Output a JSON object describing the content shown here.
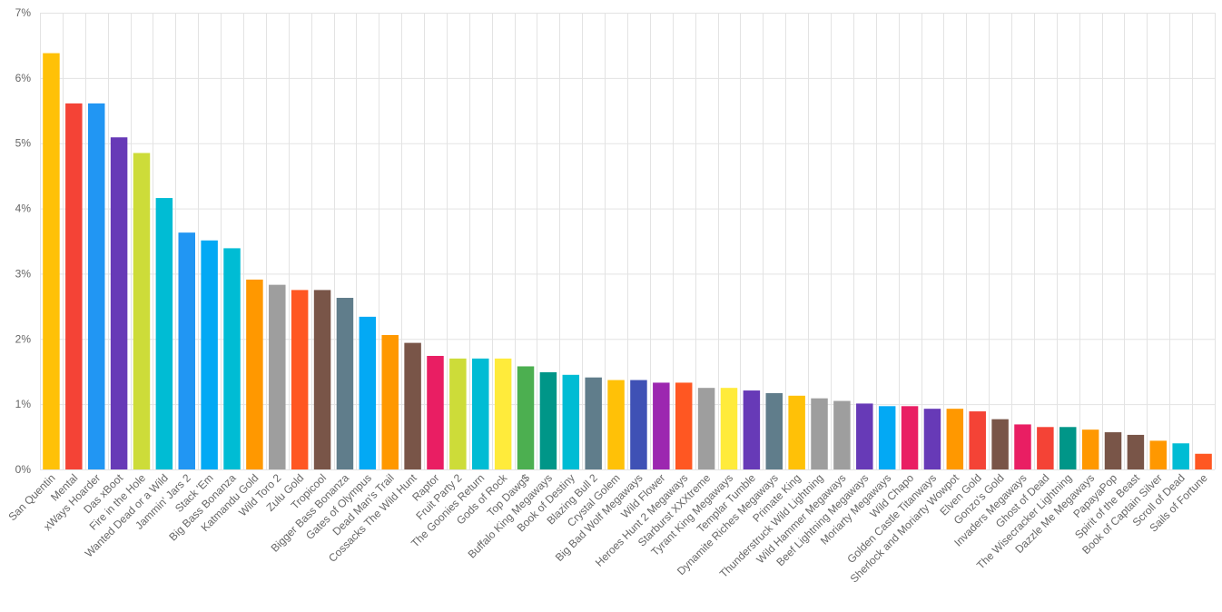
{
  "chart_data": {
    "type": "bar",
    "title": "",
    "xlabel": "",
    "ylabel": "",
    "ylim": [
      0,
      7
    ],
    "y_ticks": [
      "0%",
      "1%",
      "2%",
      "3%",
      "4%",
      "5%",
      "6%",
      "7%"
    ],
    "grid": true,
    "legend": "none",
    "categories": [
      "San Quentin",
      "Mental",
      "xWays Hoarder",
      "Das xBoot",
      "Fire in the Hole",
      "Wanted Dead or a Wild",
      "Jammin' Jars 2",
      "Stack 'Em",
      "Big Bass Bonanza",
      "Katmandu Gold",
      "Wild Toro 2",
      "Zulu Gold",
      "Tropicool",
      "Bigger Bass Bonanza",
      "Gates of Olympus",
      "Dead Man's Trail",
      "Cossacks The Wild Hunt",
      "Raptor",
      "Fruit Party 2",
      "The Goonies Return",
      "Gods of Rock",
      "Top Dawg$",
      "Buffalo King Megaways",
      "Book of Destiny",
      "Blazing Bull 2",
      "Crystal Golem",
      "Big Bad Wolf Megaways",
      "Wild Flower",
      "Heroes Hunt 2 Megaways",
      "Starburst XXXtreme",
      "Tyrant King Megaways",
      "Templar Tumble",
      "Dynamite Riches Megaways",
      "Primate King",
      "Thunderstruck Wild Lightning",
      "Wild Hammer Megaways",
      "Beef Lightning Megaways",
      "Moriarty Megaways",
      "Wild Chapo",
      "Golden Castle Titanways",
      "Sherlock and Moriarty Wowpot",
      "Elven Gold",
      "Gonzo's Gold",
      "Invaders Megaways",
      "Ghost of Dead",
      "The Wisecracker Lightning",
      "Dazzle Me Megaways",
      "PapayaPop",
      "Spirit of the Beast",
      "Book of Captain Silver",
      "Scroll of Dead",
      "Sails of Fortune"
    ],
    "values": [
      6.38,
      5.61,
      5.61,
      5.09,
      4.85,
      4.16,
      3.63,
      3.51,
      3.39,
      2.91,
      2.83,
      2.75,
      2.75,
      2.63,
      2.34,
      2.06,
      1.94,
      1.74,
      1.7,
      1.7,
      1.7,
      1.58,
      1.49,
      1.45,
      1.41,
      1.37,
      1.37,
      1.33,
      1.33,
      1.25,
      1.25,
      1.21,
      1.17,
      1.13,
      1.09,
      1.05,
      1.01,
      0.97,
      0.97,
      0.93,
      0.93,
      0.89,
      0.77,
      0.69,
      0.65,
      0.65,
      0.61,
      0.57,
      0.53,
      0.44,
      0.4,
      0.24
    ],
    "colors": [
      "#FFC107",
      "#F44336",
      "#2196F3",
      "#673AB7",
      "#CDDC39",
      "#00BCD4",
      "#2196F3",
      "#03A9F4",
      "#00BCD4",
      "#FF9800",
      "#9E9E9E",
      "#FF5722",
      "#795548",
      "#607D8B",
      "#03A9F4",
      "#FF9800",
      "#795548",
      "#E91E63",
      "#CDDC39",
      "#00BCD4",
      "#FFEB3B",
      "#4CAF50",
      "#009688",
      "#00BCD4",
      "#607D8B",
      "#FFC107",
      "#3F51B5",
      "#9C27B0",
      "#FF5722",
      "#9E9E9E",
      "#FFEB3B",
      "#673AB7",
      "#607D8B",
      "#FFC107",
      "#9E9E9E",
      "#9E9E9E",
      "#673AB7",
      "#03A9F4",
      "#E91E63",
      "#673AB7",
      "#FF9800",
      "#F44336",
      "#795548",
      "#E91E63",
      "#F44336",
      "#009688",
      "#FF9800",
      "#795548",
      "#795548",
      "#FF9800",
      "#00BCD4",
      "#FF5722"
    ]
  }
}
